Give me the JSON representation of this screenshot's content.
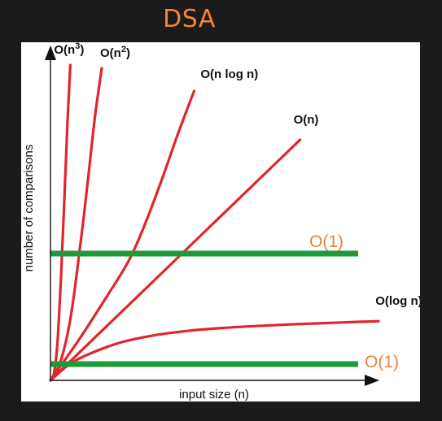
{
  "title": "DSA",
  "colors": {
    "background": "#1b1b1b",
    "panel": "#ffffff",
    "title": "#f5843a",
    "curve": "#e1262b",
    "constant_line": "#1e9a3a",
    "constant_label": "#e8823a",
    "axis": "#111111"
  },
  "chart_data": {
    "type": "line",
    "title": "DSA",
    "xlabel": "input size (n)",
    "ylabel": "number of comparisons",
    "xlim": [
      0,
      10
    ],
    "ylim": [
      0,
      10
    ],
    "grid": false,
    "legend": "none",
    "series": [
      {
        "name": "O(n³)",
        "label_main": "O(n",
        "label_sup": "3",
        "label_end": ")",
        "color": "#e1262b",
        "kind": "curve",
        "x": [
          0,
          0.1,
          0.2,
          0.3,
          0.4,
          0.5,
          0.58
        ],
        "y": [
          0,
          0.2,
          1.1,
          3.0,
          5.4,
          8.0,
          9.7
        ]
      },
      {
        "name": "O(n²)",
        "label_main": "O(n",
        "label_sup": "2",
        "label_end": ")",
        "color": "#e1262b",
        "kind": "curve",
        "x": [
          0,
          0.3,
          0.6,
          0.9,
          1.1,
          1.3,
          1.5
        ],
        "y": [
          0,
          0.6,
          2.0,
          4.4,
          6.2,
          8.1,
          9.6
        ]
      },
      {
        "name": "O(n log n)",
        "label_main": "O(n log n)",
        "label_sup": "",
        "label_end": "",
        "color": "#e1262b",
        "kind": "curve",
        "x": [
          0,
          0.8,
          1.6,
          2.3,
          2.8,
          3.3,
          3.7,
          4.2
        ],
        "y": [
          0,
          1.2,
          2.5,
          3.7,
          4.9,
          6.3,
          7.5,
          8.9
        ]
      },
      {
        "name": "O(n)",
        "label_main": "O(n)",
        "label_sup": "",
        "label_end": "",
        "color": "#e1262b",
        "kind": "curve",
        "x": [
          0,
          7.3
        ],
        "y": [
          0,
          7.4
        ]
      },
      {
        "name": "O(log n)",
        "label_main": "O(log n)",
        "label_sup": "",
        "label_end": "",
        "color": "#e1262b",
        "kind": "curve",
        "x": [
          0,
          0.5,
          1,
          2,
          3,
          4,
          5,
          6,
          7,
          8,
          9,
          9.6
        ],
        "y": [
          0,
          0.45,
          0.75,
          1.15,
          1.38,
          1.52,
          1.61,
          1.67,
          1.72,
          1.76,
          1.8,
          1.82
        ]
      },
      {
        "name": "O(1)",
        "label_main": "O(1)",
        "label_sup": "",
        "label_end": "",
        "color": "#1e9a3a",
        "kind": "constant",
        "x": [
          0,
          9.0
        ],
        "y": [
          3.9,
          3.9
        ]
      },
      {
        "name": "O(1)",
        "label_main": "O(1)",
        "label_sup": "",
        "label_end": "",
        "color": "#1e9a3a",
        "kind": "constant",
        "x": [
          0,
          9.0
        ],
        "y": [
          0.5,
          0.5
        ]
      }
    ]
  }
}
